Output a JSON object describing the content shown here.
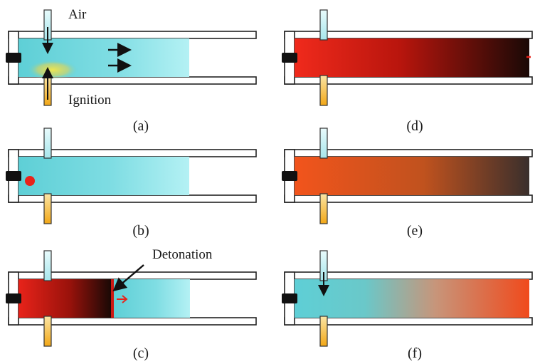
{
  "annotations": {
    "air": "Air",
    "ignition": "Ignition",
    "detonation": "Detonation"
  },
  "panels": [
    {
      "caption": "(a)",
      "stage": "fill-and-ignite",
      "fill": "fuel-air"
    },
    {
      "caption": "(b)",
      "stage": "ignition-start",
      "fill": "fuel-air"
    },
    {
      "caption": "(c)",
      "stage": "detonation-wave",
      "fill": "split"
    },
    {
      "caption": "(d)",
      "stage": "wave-exits",
      "fill": "hot-gas"
    },
    {
      "caption": "(e)",
      "stage": "expansion",
      "fill": "hot-gas-fading"
    },
    {
      "caption": "(f)",
      "stage": "purge-refill",
      "fill": "refill"
    }
  ],
  "colors": {
    "fuel_air": "#5ecfd6",
    "fuel_air_light": "#a8eef2",
    "hot_gas": "#e8231a",
    "hot_orange": "#f05a1c",
    "burnt": "#1a0906",
    "tube": "#ffffff",
    "tube_edge": "#222222",
    "valve_air": "#bff0f4",
    "valve_fuel": "#f7b720",
    "spark": "#f2e030"
  },
  "icons": [
    "air-valve-icon",
    "fuel-valve-icon",
    "igniter-icon",
    "flow-arrow-icon",
    "spark-icon"
  ]
}
